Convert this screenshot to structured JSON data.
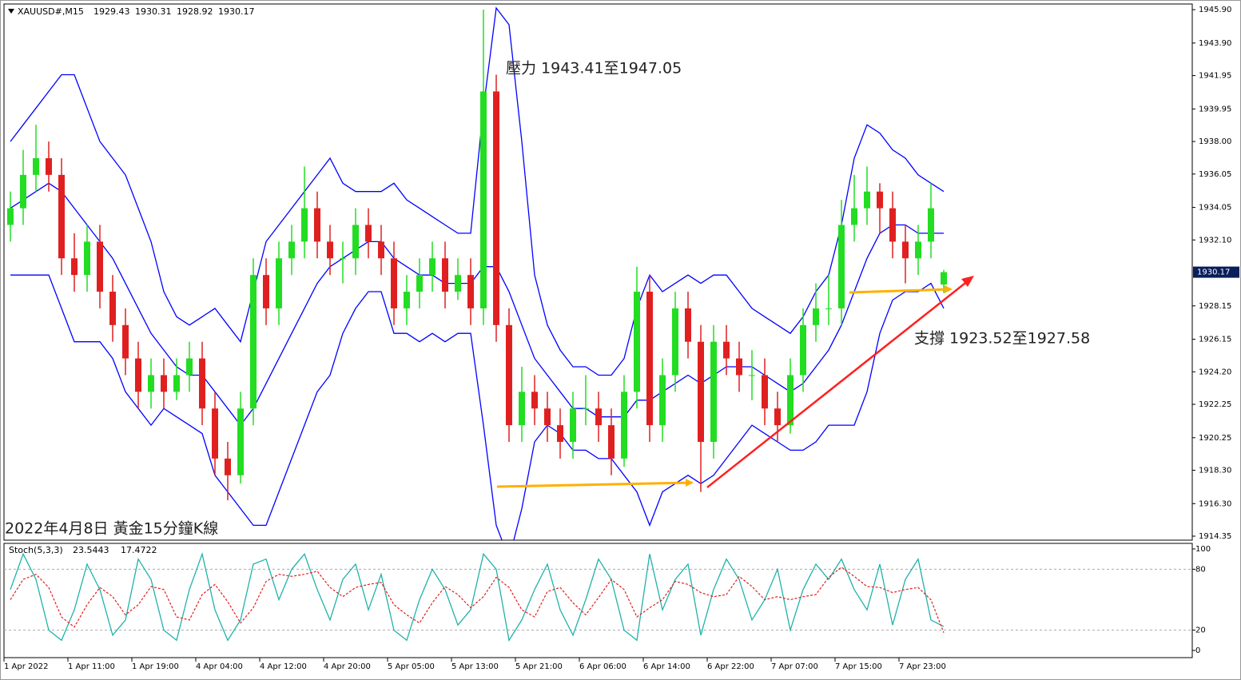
{
  "chart_data": [
    {
      "type": "candlestick",
      "title": "2022年4月8日 黃金15分鐘K線",
      "symbol": "XAUUSD#,M15",
      "annotations": [
        "壓力 1943.41至1947.05",
        "支撐 1923.52至1927.58"
      ],
      "up_color": "#22dd22",
      "down_color": "#e02020",
      "band_color": "#0000ff",
      "open": [
        1933,
        1934,
        1936,
        1937,
        1936,
        1931,
        1930,
        1932,
        1929,
        1927,
        1925,
        1923,
        1924,
        1923,
        1924,
        1925,
        1922,
        1919,
        1918,
        1922,
        1930,
        1928,
        1931,
        1932,
        1934,
        1932,
        1931,
        1931,
        1933,
        1932,
        1931,
        1928,
        1929,
        1930,
        1931,
        1929,
        1930,
        1928,
        1941,
        1927,
        1921,
        1923,
        1922,
        1921,
        1920,
        1922,
        1922,
        1921,
        1919,
        1923,
        1929,
        1921,
        1924,
        1928,
        1926,
        1920,
        1926,
        1925,
        1924,
        1924,
        1922,
        1921,
        1924,
        1927,
        1928,
        1928,
        1933,
        1934,
        1935,
        1934,
        1932,
        1931,
        1932,
        1929.43
      ],
      "high": [
        1935,
        1937.5,
        1939,
        1938,
        1937,
        1932.5,
        1933,
        1933,
        1930,
        1928,
        1926,
        1925,
        1925,
        1925,
        1926,
        1926,
        1923,
        1920,
        1923,
        1931,
        1931,
        1932,
        1933,
        1936.5,
        1935,
        1933,
        1932,
        1934,
        1934,
        1933,
        1932,
        1930,
        1931,
        1932,
        1932,
        1931,
        1931,
        1945.9,
        1942,
        1928,
        1924.5,
        1924,
        1923,
        1922,
        1923,
        1924,
        1923,
        1922,
        1924,
        1930.5,
        1930,
        1925,
        1929,
        1929,
        1927,
        1927,
        1927,
        1926,
        1925.5,
        1925,
        1923,
        1925,
        1928,
        1929.5,
        1930,
        1934.5,
        1936,
        1936.5,
        1935.5,
        1935,
        1933,
        1933,
        1935.5,
        1930.31
      ],
      "low": [
        1932,
        1933,
        1935,
        1935,
        1930,
        1929,
        1929,
        1928,
        1926,
        1924,
        1922,
        1922,
        1922,
        1922.5,
        1923,
        1921,
        1918,
        1916.5,
        1917.5,
        1921,
        1927,
        1927,
        1930,
        1931,
        1931,
        1930,
        1929.5,
        1930,
        1931,
        1930,
        1927,
        1927,
        1928,
        1929,
        1928,
        1928.5,
        1927,
        1927,
        1926,
        1920,
        1920,
        1921,
        1920,
        1919,
        1919,
        1921,
        1920,
        1918,
        1918.5,
        1922,
        1920,
        1920,
        1923,
        1925,
        1917,
        1919,
        1924,
        1923,
        1922.5,
        1921,
        1920,
        1920.5,
        1923,
        1926,
        1927,
        1927,
        1932,
        1933,
        1932.5,
        1931,
        1929.5,
        1930,
        1931,
        1928.92
      ],
      "close": [
        1934,
        1936,
        1937,
        1936,
        1931,
        1930,
        1932,
        1929,
        1927,
        1925,
        1923,
        1924,
        1923,
        1924,
        1925,
        1922,
        1919,
        1918,
        1922,
        1930,
        1928,
        1931,
        1932,
        1934,
        1932,
        1931,
        1931,
        1933,
        1932,
        1931,
        1928,
        1929,
        1930,
        1931,
        1929,
        1930,
        1928,
        1941,
        1927,
        1921,
        1923,
        1922,
        1921,
        1920,
        1922,
        1922,
        1921,
        1919,
        1923,
        1929,
        1921,
        1924,
        1928,
        1926,
        1920,
        1926,
        1925,
        1924,
        1924,
        1922,
        1921,
        1924,
        1927,
        1928,
        1928,
        1933,
        1934,
        1935,
        1934,
        1932,
        1931,
        1932,
        1934,
        1930.17
      ],
      "bands": {
        "upper": [
          1938,
          1939,
          1940,
          1941,
          1942,
          1942,
          1940,
          1938,
          1937,
          1936,
          1934,
          1932,
          1929,
          1927.5,
          1927,
          1927.5,
          1928,
          1927,
          1926,
          1929,
          1932,
          1933,
          1934,
          1935,
          1936,
          1937,
          1935.5,
          1935,
          1935,
          1935,
          1935.5,
          1934.5,
          1934,
          1933.5,
          1933,
          1932.5,
          1932.5,
          1940,
          1946,
          1945,
          1938,
          1930,
          1927,
          1925.5,
          1924.5,
          1924.5,
          1924,
          1924,
          1925,
          1928,
          1930,
          1929,
          1929.5,
          1930,
          1929.5,
          1930,
          1930,
          1929,
          1928,
          1927.5,
          1927,
          1926.5,
          1927.5,
          1929,
          1930,
          1933,
          1937,
          1939,
          1938.5,
          1937.5,
          1937,
          1936,
          1935.5,
          1935
        ],
        "middle": [
          1934,
          1934.5,
          1935,
          1935.5,
          1935,
          1934,
          1933,
          1932,
          1931,
          1929.5,
          1928,
          1926.5,
          1925.5,
          1924.5,
          1924,
          1924,
          1923,
          1922,
          1921,
          1922,
          1923.5,
          1925,
          1926.5,
          1928,
          1929.5,
          1930.5,
          1931,
          1931.5,
          1932,
          1932,
          1931,
          1930.5,
          1930,
          1930,
          1929.5,
          1929.5,
          1929.5,
          1930.5,
          1930.5,
          1929,
          1927,
          1925,
          1924,
          1923,
          1922,
          1922,
          1921.5,
          1921.5,
          1921.5,
          1922.5,
          1922.5,
          1923,
          1923.5,
          1924,
          1923.5,
          1924,
          1924.5,
          1924.5,
          1924.5,
          1924,
          1923.5,
          1923,
          1923.5,
          1924.5,
          1925.5,
          1927,
          1929,
          1931,
          1932.5,
          1933,
          1933,
          1932.5,
          1932.5,
          1932.5
        ],
        "lower": [
          1930,
          1930,
          1930,
          1930,
          1928,
          1926,
          1926,
          1926,
          1925,
          1923,
          1922,
          1921,
          1922,
          1921.5,
          1921,
          1920.5,
          1918,
          1917,
          1916,
          1915,
          1915,
          1917,
          1919,
          1921,
          1923,
          1924,
          1926.5,
          1928,
          1929,
          1929,
          1926.5,
          1926.5,
          1926,
          1926.5,
          1926,
          1926.5,
          1926.5,
          1921,
          1915,
          1913,
          1916,
          1920,
          1921,
          1920.5,
          1919.5,
          1919.5,
          1919,
          1919,
          1918,
          1917,
          1915,
          1917,
          1917.5,
          1918,
          1917.5,
          1918,
          1919,
          1920,
          1921,
          1920.5,
          1920,
          1919.5,
          1919.5,
          1920,
          1921,
          1921,
          1921,
          1923,
          1926.5,
          1928.5,
          1929,
          1929,
          1929.5,
          1928
        ]
      },
      "xlim": [
        -0.5,
        92.5
      ],
      "xticks": [
        {
          "value": 0,
          "label": "1 Apr 2022"
        },
        {
          "value": 5,
          "label": "1 Apr 11:00"
        },
        {
          "value": 10,
          "label": "1 Apr 19:00"
        },
        {
          "value": 15,
          "label": "4 Apr 04:00"
        },
        {
          "value": 20,
          "label": "4 Apr 12:00"
        },
        {
          "value": 25,
          "label": "4 Apr 20:00"
        },
        {
          "value": 30,
          "label": "5 Apr 05:00"
        },
        {
          "value": 35,
          "label": "5 Apr 13:00"
        },
        {
          "value": 40,
          "label": "5 Apr 21:00"
        },
        {
          "value": 45,
          "label": "6 Apr 06:00"
        },
        {
          "value": 50,
          "label": "6 Apr 14:00"
        },
        {
          "value": 55,
          "label": "6 Apr 22:00"
        },
        {
          "value": 60,
          "label": "7 Apr 07:00"
        },
        {
          "value": 65,
          "label": "7 Apr 15:00"
        },
        {
          "value": 70,
          "label": "7 Apr 23:00"
        }
      ],
      "ylim": [
        1914.11,
        1946.24
      ],
      "yticks": [
        {
          "value": 1945.9,
          "label": "1945.90"
        },
        {
          "value": 1943.9,
          "label": "1943.90"
        },
        {
          "value": 1941.95,
          "label": "1941.95"
        },
        {
          "value": 1939.95,
          "label": "1939.95"
        },
        {
          "value": 1938,
          "label": "1938.00"
        },
        {
          "value": 1936.05,
          "label": "1936.05"
        },
        {
          "value": 1934.05,
          "label": "1934.05"
        },
        {
          "value": 1932.1,
          "label": "1932.10"
        },
        {
          "value": 1928.15,
          "label": "1928.15"
        },
        {
          "value": 1926.15,
          "label": "1926.15"
        },
        {
          "value": 1924.2,
          "label": "1924.20"
        },
        {
          "value": 1922.25,
          "label": "1922.25"
        },
        {
          "value": 1920.25,
          "label": "1920.25"
        },
        {
          "value": 1918.3,
          "label": "1918.30"
        },
        {
          "value": 1916.3,
          "label": "1916.30"
        },
        {
          "value": 1914.35,
          "label": "1914.35"
        }
      ]
    },
    {
      "type": "line",
      "title": "Stoch(5,3,3)",
      "main": {
        "color": "#20b2aa",
        "values": [
          60,
          95,
          70,
          20,
          10,
          40,
          85,
          60,
          15,
          30,
          90,
          70,
          20,
          10,
          60,
          95,
          40,
          10,
          30,
          85,
          90,
          50,
          80,
          95,
          60,
          30,
          70,
          85,
          40,
          75,
          20,
          10,
          50,
          80,
          60,
          25,
          40,
          95,
          80,
          10,
          30,
          60,
          85,
          40,
          15,
          50,
          90,
          70,
          20,
          10,
          95,
          40,
          70,
          85,
          15,
          60,
          90,
          70,
          30,
          50,
          80,
          20,
          60,
          85,
          70,
          90,
          60,
          40,
          85,
          25,
          70,
          90,
          30,
          23.5443
        ]
      },
      "signal": {
        "color": "#e02020",
        "values": [
          50,
          70,
          75,
          62,
          33,
          23,
          45,
          62,
          53,
          35,
          45,
          63,
          60,
          33,
          30,
          55,
          65,
          48,
          27,
          42,
          68,
          75,
          73,
          75,
          78,
          62,
          53,
          62,
          65,
          67,
          45,
          35,
          27,
          47,
          63,
          55,
          42,
          53,
          72,
          62,
          40,
          33,
          58,
          62,
          47,
          35,
          52,
          70,
          60,
          33,
          42,
          50,
          68,
          65,
          57,
          53,
          55,
          73,
          63,
          50,
          53,
          50,
          53,
          55,
          72,
          82,
          73,
          63,
          62,
          57,
          60,
          62,
          50,
          17.4722
        ]
      },
      "ylim": [
        -7.1,
        105.5
      ],
      "yticks": [
        100,
        80,
        20,
        0
      ]
    }
  ]
}
